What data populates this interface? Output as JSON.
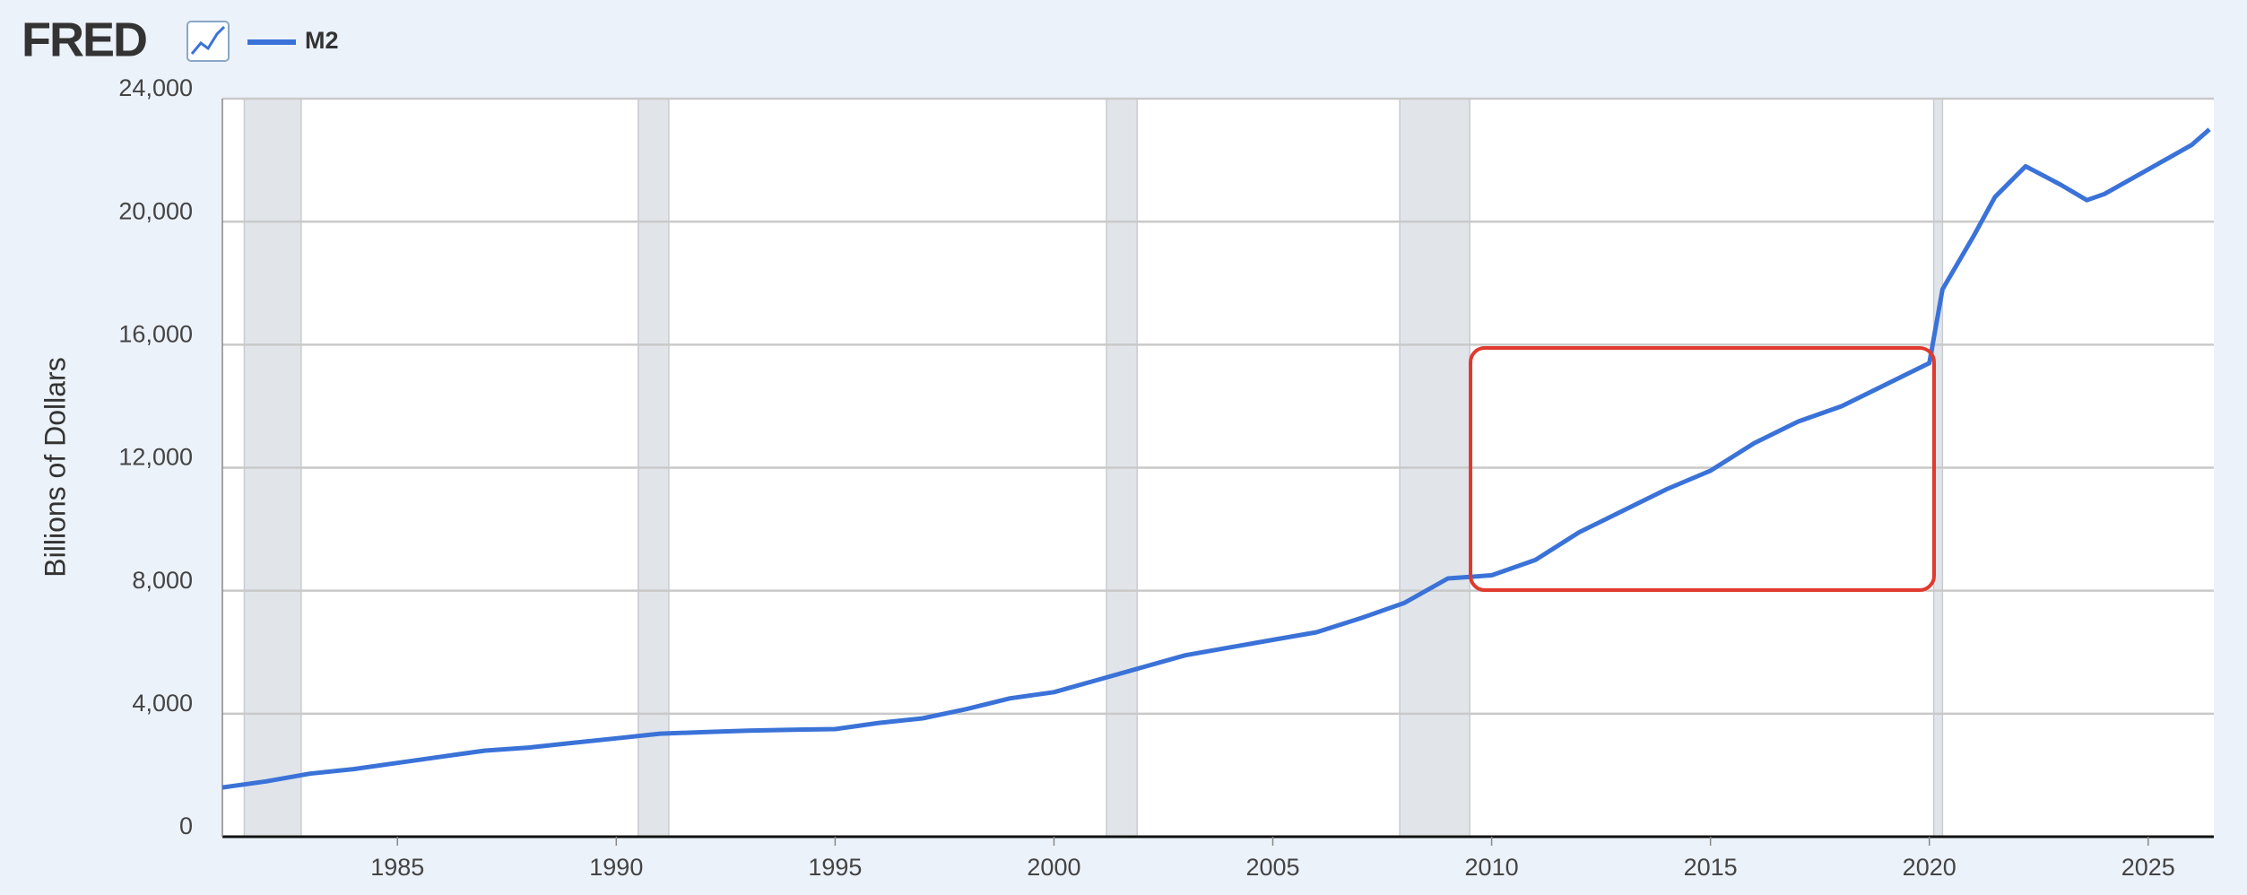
{
  "logo": "FRED",
  "chart_data": {
    "type": "line",
    "y_label": "Billions of Dollars",
    "x": [
      1981.0,
      1982.0,
      1983.0,
      1984.0,
      1985.0,
      1986.0,
      1987.0,
      1988.0,
      1989.0,
      1990.0,
      1991.0,
      1992.0,
      1993.0,
      1994.0,
      1995.0,
      1996.0,
      1997.0,
      1998.0,
      1999.0,
      2000.0,
      2001.0,
      2002.0,
      2003.0,
      2004.0,
      2005.0,
      2006.0,
      2007.0,
      2008.0,
      2009.0,
      2010.0,
      2011.0,
      2012.0,
      2013.0,
      2014.0,
      2015.0,
      2016.0,
      2017.0,
      2018.0,
      2019.0,
      2020.0,
      2020.3,
      2021.0,
      2021.5,
      2022.2,
      2023.0,
      2023.6,
      2024.0,
      2025.0,
      2026.0,
      2026.4
    ],
    "series": [
      {
        "name": "M2",
        "color": "#3a72d8",
        "values": [
          1600,
          1800,
          2050,
          2200,
          2400,
          2600,
          2800,
          2900,
          3050,
          3200,
          3350,
          3400,
          3450,
          3480,
          3500,
          3700,
          3850,
          4150,
          4500,
          4700,
          5100,
          5500,
          5900,
          6150,
          6400,
          6650,
          7100,
          7600,
          8400,
          8500,
          9000,
          9900,
          10600,
          11300,
          11900,
          12800,
          13500,
          14000,
          14700,
          15400,
          17800,
          19500,
          20800,
          21800,
          21200,
          20700,
          20900,
          21700,
          22500,
          23000
        ]
      }
    ],
    "recessions": [
      [
        1981.5,
        1982.8
      ],
      [
        1990.5,
        1991.2
      ],
      [
        2001.2,
        2001.9
      ],
      [
        2007.9,
        2009.5
      ],
      [
        2020.1,
        2020.3
      ]
    ],
    "recession_color": "#e1e5ea",
    "xlim": [
      1981.0,
      2026.5
    ],
    "ylim": [
      0,
      24000
    ],
    "xticks": [
      1985,
      1990,
      1995,
      2000,
      2005,
      2010,
      2015,
      2020,
      2025
    ],
    "yticks": [
      0,
      {
        "value": 4000,
        "label": "4,000"
      },
      {
        "value": 8000,
        "label": "8,000"
      },
      {
        "value": 12000,
        "label": "12,000"
      },
      {
        "value": 16000,
        "label": "16,000"
      },
      {
        "value": 20000,
        "label": "20,000"
      },
      {
        "value": 24000,
        "label": "24,000"
      }
    ],
    "grid": true
  }
}
